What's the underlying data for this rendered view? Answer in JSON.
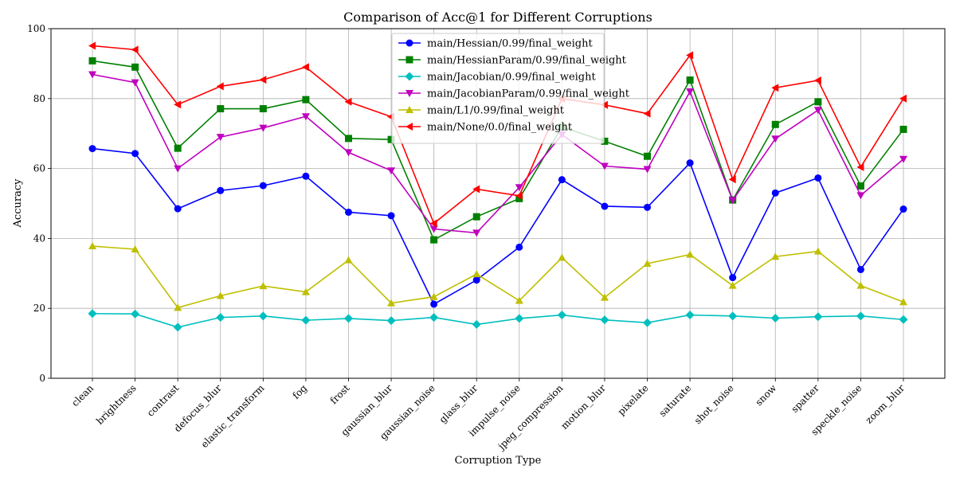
{
  "chart_data": {
    "type": "line",
    "title": "Comparison of Acc@1 for Different Corruptions",
    "xlabel": "Corruption Type",
    "ylabel": "Accuracy",
    "ylim": [
      0,
      100
    ],
    "yticks": [
      0,
      20,
      40,
      60,
      80,
      100
    ],
    "grid": true,
    "legend_position": "top-center",
    "categories": [
      "clean",
      "brightness",
      "contrast",
      "defocus_blur",
      "elastic_transform",
      "fog",
      "frost",
      "gaussian_blur",
      "gaussian_noise",
      "glass_blur",
      "impulse_noise",
      "jpeg_compression",
      "motion_blur",
      "pixelate",
      "saturate",
      "shot_noise",
      "snow",
      "spatter",
      "speckle_noise",
      "zoom_blur"
    ],
    "series": [
      {
        "name": "main/Hessian/0.99/final_weight",
        "color": "#0000ff",
        "marker": "circle",
        "values": [
          65.7,
          64.3,
          48.5,
          53.7,
          55.1,
          57.8,
          47.5,
          46.5,
          21.2,
          28.1,
          37.5,
          56.8,
          49.2,
          48.9,
          61.6,
          28.8,
          53.0,
          57.3,
          31.1,
          48.4
        ]
      },
      {
        "name": "main/HessianParam/0.99/final_weight",
        "color": "#008000",
        "marker": "square",
        "values": [
          90.8,
          89.0,
          65.8,
          77.1,
          77.1,
          79.7,
          68.6,
          68.3,
          39.6,
          46.2,
          51.4,
          71.9,
          67.8,
          63.5,
          85.3,
          51.0,
          72.6,
          79.1,
          55.0,
          71.2
        ]
      },
      {
        "name": "main/Jacobian/0.99/final_weight",
        "color": "#00bfbf",
        "marker": "diamond",
        "values": [
          18.5,
          18.4,
          14.6,
          17.4,
          17.8,
          16.6,
          17.1,
          16.5,
          17.4,
          15.4,
          17.1,
          18.1,
          16.7,
          15.9,
          18.1,
          17.8,
          17.2,
          17.6,
          17.8,
          16.8
        ]
      },
      {
        "name": "main/JacobianParam/0.99/final_weight",
        "color": "#bf00bf",
        "marker": "triangle-down",
        "values": [
          86.9,
          84.6,
          60.0,
          69.0,
          71.6,
          74.9,
          64.6,
          59.4,
          42.7,
          41.6,
          54.6,
          69.7,
          60.7,
          59.8,
          82.0,
          50.9,
          68.5,
          76.7,
          52.3,
          62.7
        ]
      },
      {
        "name": "main/L1/0.99/final_weight",
        "color": "#bfbf00",
        "marker": "triangle-up",
        "values": [
          37.8,
          36.9,
          20.2,
          23.6,
          26.4,
          24.7,
          33.8,
          21.5,
          23.3,
          29.8,
          22.2,
          34.5,
          23.1,
          32.8,
          35.4,
          26.5,
          34.8,
          36.3,
          26.5,
          21.8
        ]
      },
      {
        "name": "main/None/0.0/final_weight",
        "color": "#ff0000",
        "marker": "triangle-left",
        "values": [
          95.1,
          94.0,
          78.3,
          83.5,
          85.4,
          89.0,
          79.1,
          74.8,
          44.3,
          54.1,
          52.2,
          80.0,
          78.2,
          75.7,
          92.4,
          56.9,
          83.1,
          85.2,
          60.4,
          80.0
        ]
      }
    ]
  }
}
